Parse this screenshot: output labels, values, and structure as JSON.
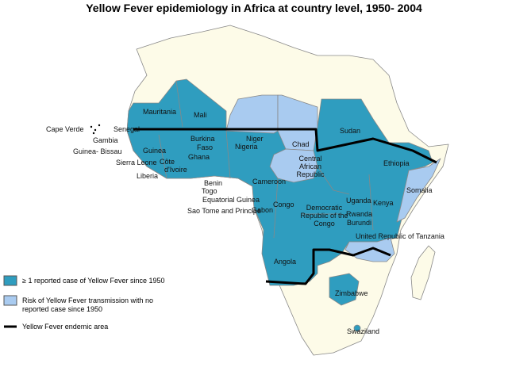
{
  "title": "Yellow Fever epidemiology in Africa at country level, 1950- 2004",
  "labels": [
    "Mauritania",
    "Mali",
    "Niger",
    "Chad",
    "Sudan",
    "Cape Verde",
    "Senegal",
    "Gambia",
    "Guinea- Bissau",
    "Guinea",
    "Burkina",
    "Faso",
    "Sierra Leone",
    "Côte",
    "d'Ivoire",
    "Ghana",
    "Liberia",
    "Nigeria",
    "Central African Republic",
    "Ethiopia",
    "Cameroon",
    "Benin",
    "Togo",
    "Equatorial Guinea",
    "Sao Tome and Principe",
    "Gabon",
    "Congo",
    "Democratic Republic of the Congo",
    "Uganda",
    "Kenya",
    "Somalia",
    "Rwanda",
    "Burundi",
    "United Republic of Tanzania",
    "Angola",
    "Zimbabwe",
    "Swaziland"
  ],
  "legend": [
    "≥ 1 reported case of Yellow Fever since 1950",
    "Risk of Yellow Fever transmission with no reported case since 1950",
    "Yellow Fever endemic area"
  ]
}
